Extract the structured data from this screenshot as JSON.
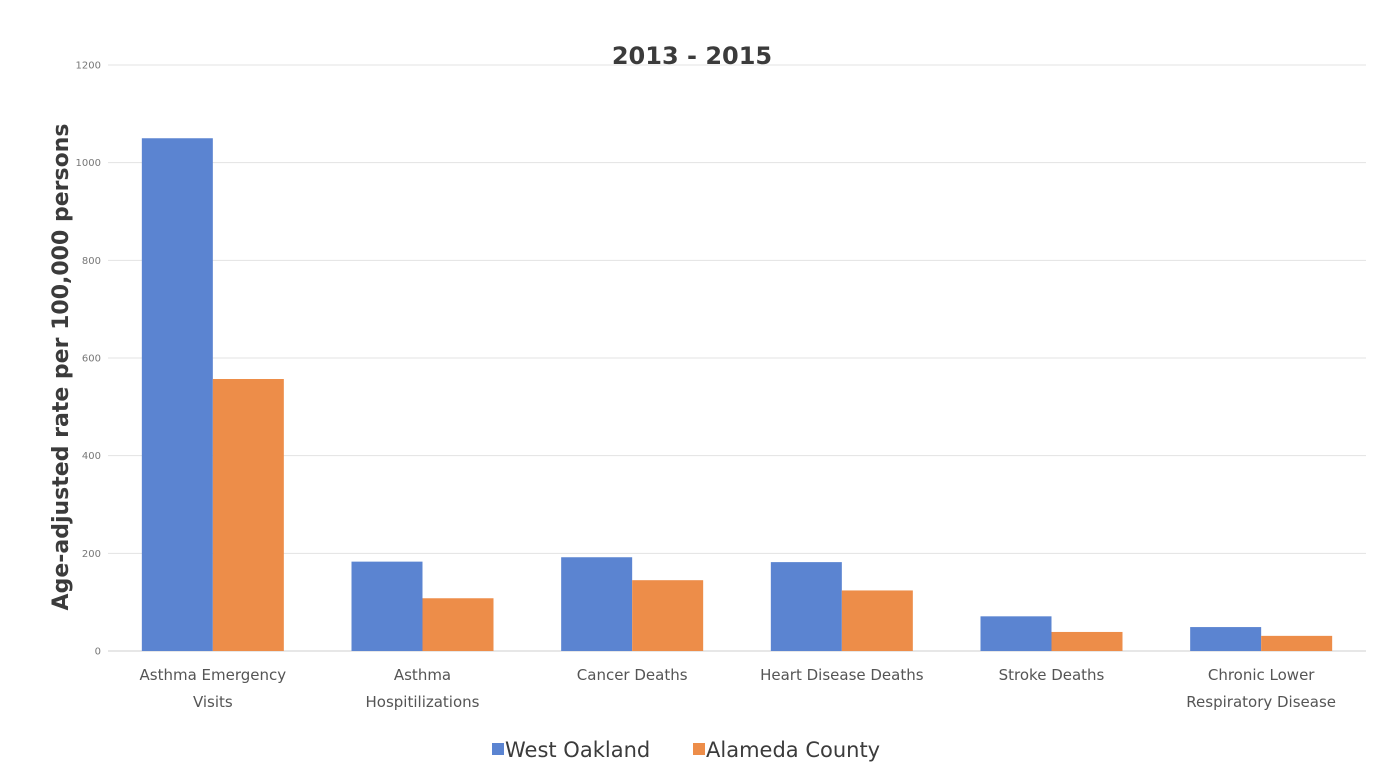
{
  "chart_data": {
    "type": "bar",
    "title": "2013 - 2015",
    "ylabel": "Age-adjusted rate per 100,000 persons",
    "xlabel": "",
    "ylim": [
      0,
      1200
    ],
    "yticks": [
      0,
      200,
      400,
      600,
      800,
      1000,
      1200
    ],
    "grid": true,
    "legend_position": "bottom",
    "categories": [
      [
        "Asthma Emergency",
        "Visits"
      ],
      [
        "Asthma",
        "Hospitilizations"
      ],
      [
        "Cancer Deaths"
      ],
      [
        "Heart Disease Deaths"
      ],
      [
        "Stroke Deaths"
      ],
      [
        "Chronic Lower",
        "Respiratory Disease"
      ]
    ],
    "series": [
      {
        "name": "West Oakland",
        "color": "#5b84d1",
        "values": [
          1050,
          183,
          192,
          182,
          71,
          49
        ]
      },
      {
        "name": "Alameda County",
        "color": "#ed8d49",
        "values": [
          557,
          108,
          145,
          124,
          39,
          31
        ]
      }
    ]
  }
}
